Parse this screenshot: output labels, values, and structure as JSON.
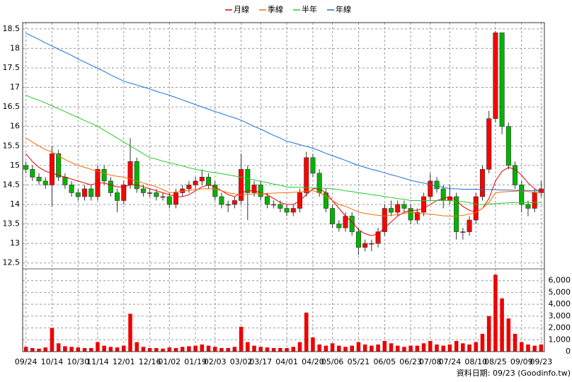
{
  "chart_data": {
    "type": "candlestick",
    "legend": "top",
    "grid": true,
    "categories": [
      "09/24",
      null,
      null,
      null,
      "10/14",
      null,
      null,
      null,
      "10/30",
      null,
      null,
      "11/14",
      null,
      null,
      null,
      "12/01",
      null,
      null,
      null,
      "12/16",
      null,
      null,
      "01/02",
      null,
      null,
      null,
      "01/19",
      null,
      null,
      "02/03",
      null,
      null,
      null,
      "03/02",
      null,
      null,
      "03/17",
      null,
      null,
      null,
      "04/01",
      null,
      null,
      null,
      "04/20",
      null,
      null,
      "05/06",
      null,
      null,
      null,
      "05/21",
      null,
      null,
      null,
      "06/05",
      null,
      null,
      null,
      "06/23",
      null,
      null,
      "07/08",
      null,
      null,
      "07/24",
      null,
      null,
      null,
      "08/10",
      null,
      null,
      "08/25",
      null,
      null,
      null,
      "09/09",
      null,
      null,
      "09/23"
    ],
    "open": [
      15.0,
      14.9,
      14.7,
      14.6,
      14.5,
      15.3,
      14.7,
      14.5,
      14.3,
      14.2,
      14.4,
      14.2,
      14.9,
      14.6,
      14.3,
      14.1,
      14.5,
      15.1,
      14.4,
      14.3,
      14.3,
      14.2,
      14.2,
      14.0,
      14.3,
      14.4,
      14.5,
      14.6,
      14.7,
      14.5,
      14.2,
      14.0,
      14.0,
      14.1,
      14.9,
      14.3,
      14.5,
      14.2,
      14.0,
      14.0,
      13.9,
      13.8,
      13.9,
      14.3,
      15.2,
      14.8,
      14.3,
      13.9,
      13.5,
      13.4,
      13.7,
      13.3,
      12.9,
      13.0,
      13.0,
      13.3,
      13.9,
      13.8,
      14.0,
      13.9,
      13.6,
      13.8,
      14.2,
      14.6,
      14.4,
      14.1,
      14.2,
      13.3,
      13.3,
      13.6,
      14.2,
      14.9,
      16.2,
      18.4,
      16.0,
      15.0,
      14.5,
      14.0,
      13.9,
      14.3
    ],
    "high": [
      15.1,
      15.0,
      14.8,
      14.7,
      15.5,
      15.4,
      14.8,
      14.6,
      14.4,
      14.5,
      14.5,
      15.0,
      15.0,
      14.7,
      14.4,
      14.6,
      15.7,
      15.2,
      14.5,
      14.4,
      14.4,
      14.3,
      14.3,
      14.4,
      14.5,
      14.6,
      14.7,
      14.9,
      14.8,
      14.6,
      14.3,
      14.1,
      14.2,
      15.3,
      15.0,
      14.6,
      14.6,
      14.3,
      14.1,
      14.1,
      14.0,
      14.0,
      14.4,
      15.35,
      15.3,
      14.9,
      14.4,
      14.0,
      13.6,
      13.8,
      13.8,
      13.4,
      13.1,
      13.1,
      13.4,
      14.0,
      14.1,
      14.1,
      14.1,
      14.0,
      13.9,
      14.3,
      14.8,
      14.7,
      14.5,
      14.5,
      14.3,
      13.4,
      13.7,
      14.3,
      15.0,
      16.4,
      18.45,
      18.4,
      16.1,
      15.1,
      14.6,
      14.1,
      14.4,
      14.6
    ],
    "low": [
      14.8,
      14.6,
      14.5,
      14.4,
      13.95,
      14.6,
      14.4,
      14.2,
      14.1,
      14.1,
      14.1,
      14.1,
      14.5,
      14.2,
      13.8,
      14.0,
      14.4,
      14.3,
      14.2,
      14.2,
      14.1,
      14.1,
      13.9,
      13.9,
      14.2,
      14.3,
      14.4,
      14.5,
      14.4,
      14.1,
      13.9,
      13.8,
      13.9,
      14.0,
      13.6,
      14.2,
      14.1,
      13.9,
      13.9,
      13.8,
      13.7,
      13.7,
      13.8,
      14.2,
      14.7,
      14.2,
      13.8,
      13.4,
      13.3,
      13.3,
      13.2,
      12.7,
      12.8,
      12.8,
      12.9,
      13.2,
      13.7,
      13.7,
      13.8,
      13.5,
      13.5,
      13.7,
      14.1,
      14.3,
      13.9,
      14.0,
      13.1,
      13.1,
      13.2,
      13.5,
      14.1,
      14.8,
      16.1,
      15.8,
      14.9,
      14.4,
      13.8,
      13.7,
      13.8,
      14.2
    ],
    "close": [
      14.9,
      14.7,
      14.6,
      14.5,
      15.3,
      14.7,
      14.5,
      14.3,
      14.2,
      14.4,
      14.2,
      14.9,
      14.6,
      14.3,
      14.1,
      14.5,
      15.1,
      14.4,
      14.3,
      14.3,
      14.2,
      14.2,
      14.0,
      14.3,
      14.4,
      14.5,
      14.6,
      14.7,
      14.5,
      14.2,
      14.0,
      14.0,
      14.1,
      14.9,
      14.3,
      14.5,
      14.2,
      14.0,
      14.0,
      13.9,
      13.8,
      13.9,
      14.3,
      15.2,
      14.8,
      14.3,
      13.9,
      13.5,
      13.4,
      13.7,
      13.3,
      12.9,
      13.0,
      13.0,
      13.3,
      13.9,
      13.8,
      14.0,
      13.9,
      13.6,
      13.8,
      14.2,
      14.6,
      14.4,
      14.1,
      14.2,
      13.3,
      13.3,
      13.6,
      14.2,
      14.9,
      16.2,
      18.4,
      16.0,
      15.0,
      14.5,
      14.0,
      13.9,
      14.3,
      14.4
    ],
    "up_color": "#ff0000",
    "down_color": "#00b400",
    "ylim": [
      12.35,
      18.66
    ],
    "yticks": [
      12.5,
      13,
      13.5,
      14,
      14.5,
      15,
      15.5,
      16,
      16.5,
      17,
      17.5,
      18,
      18.5
    ],
    "series": [
      {
        "name": "月線",
        "color": "#e00000",
        "values": [
          15.3,
          15.1,
          14.95,
          14.85,
          14.8,
          14.75,
          14.7,
          14.65,
          14.6,
          14.55,
          14.5,
          14.55,
          14.55,
          14.5,
          14.45,
          14.45,
          14.5,
          14.5,
          14.45,
          14.4,
          14.35,
          14.3,
          14.25,
          14.2,
          14.2,
          14.25,
          14.35,
          14.45,
          14.5,
          14.45,
          14.35,
          14.25,
          14.2,
          14.3,
          14.35,
          14.35,
          14.3,
          14.25,
          14.15,
          14.05,
          14.0,
          14.0,
          14.1,
          14.25,
          14.4,
          14.4,
          14.3,
          14.1,
          13.9,
          13.7,
          13.55,
          13.35,
          13.25,
          13.2,
          13.25,
          13.4,
          13.55,
          13.7,
          13.8,
          13.85,
          13.85,
          13.9,
          14.0,
          14.1,
          14.15,
          14.2,
          14.1,
          13.95,
          13.85,
          13.8,
          13.9,
          14.15,
          14.6,
          14.85,
          14.95,
          14.9,
          14.75,
          14.55,
          14.4,
          14.3
        ]
      },
      {
        "name": "季線",
        "color": "#ff6a00",
        "values": [
          15.7,
          15.6,
          15.5,
          15.4,
          15.35,
          15.25,
          15.15,
          15.07,
          15.0,
          14.95,
          14.9,
          14.85,
          14.8,
          14.75,
          14.72,
          14.7,
          14.65,
          14.6,
          14.55,
          14.5,
          14.45,
          14.38,
          14.3,
          14.32,
          14.34,
          14.36,
          14.38,
          14.4,
          14.4,
          14.4,
          14.35,
          14.3,
          14.27,
          14.25,
          14.26,
          14.27,
          14.28,
          14.28,
          14.29,
          14.3,
          14.3,
          14.31,
          14.32,
          14.34,
          14.35,
          14.3,
          14.2,
          14.1,
          14.0,
          13.95,
          13.88,
          13.8,
          13.77,
          13.74,
          13.72,
          13.7,
          13.72,
          13.74,
          13.77,
          13.8,
          13.78,
          13.76,
          13.75,
          13.73,
          13.71,
          13.7,
          13.7,
          13.72,
          13.75,
          13.8,
          13.9,
          14.05,
          14.3,
          14.32,
          14.33,
          14.34,
          14.35,
          14.33,
          14.31,
          14.3
        ]
      },
      {
        "name": "半年",
        "color": "#22cc22",
        "values": [
          16.8,
          16.73,
          16.67,
          16.6,
          16.53,
          16.45,
          16.38,
          16.3,
          16.23,
          16.15,
          16.08,
          16.0,
          15.9,
          15.8,
          15.7,
          15.6,
          15.5,
          15.4,
          15.3,
          15.2,
          15.16,
          15.11,
          15.07,
          15.03,
          14.99,
          14.94,
          14.9,
          14.87,
          14.84,
          14.81,
          14.79,
          14.76,
          14.73,
          14.7,
          14.66,
          14.63,
          14.59,
          14.56,
          14.52,
          14.49,
          14.45,
          14.44,
          14.44,
          14.43,
          14.42,
          14.42,
          14.41,
          14.4,
          14.38,
          14.35,
          14.33,
          14.3,
          14.28,
          14.25,
          14.23,
          14.2,
          14.18,
          14.15,
          14.13,
          14.1,
          14.1,
          14.1,
          14.1,
          14.1,
          14.1,
          14.1,
          14.08,
          14.07,
          14.05,
          14.0,
          14.0,
          14.01,
          14.02,
          14.03,
          14.04,
          14.05,
          14.05,
          14.05,
          14.05,
          14.05
        ]
      },
      {
        "name": "年線",
        "color": "#1e6ed2",
        "values": [
          18.39,
          18.31,
          18.23,
          18.14,
          18.06,
          17.98,
          17.9,
          17.82,
          17.73,
          17.65,
          17.57,
          17.49,
          17.41,
          17.32,
          17.24,
          17.16,
          17.11,
          17.06,
          17.01,
          16.96,
          16.9,
          16.85,
          16.8,
          16.74,
          16.68,
          16.62,
          16.56,
          16.5,
          16.44,
          16.38,
          16.33,
          16.27,
          16.22,
          16.16,
          16.08,
          16.0,
          15.93,
          15.85,
          15.77,
          15.7,
          15.62,
          15.58,
          15.53,
          15.49,
          15.44,
          15.38,
          15.31,
          15.25,
          15.19,
          15.13,
          15.06,
          15.0,
          14.95,
          14.9,
          14.86,
          14.81,
          14.76,
          14.72,
          14.67,
          14.62,
          14.58,
          14.55,
          14.51,
          14.47,
          14.44,
          14.4,
          14.4,
          14.39,
          14.39,
          14.39,
          14.38,
          14.38,
          14.38,
          14.37,
          14.37,
          14.36,
          14.36,
          14.36,
          14.35,
          14.35
        ]
      }
    ],
    "volume": {
      "color": "#ee0000",
      "ylim": [
        0,
        7000
      ],
      "yticks": [
        0,
        {
          "value": 1000,
          "label": "1,000"
        },
        {
          "value": 2000,
          "label": "2,000"
        },
        {
          "value": 3000,
          "label": "3,000"
        },
        {
          "value": 4000,
          "label": "4,000"
        },
        {
          "value": 5000,
          "label": "5,000"
        },
        {
          "value": 6000,
          "label": "6,000"
        }
      ],
      "values": [
        400,
        300,
        250,
        350,
        2000,
        700,
        450,
        400,
        350,
        300,
        300,
        800,
        500,
        400,
        350,
        500,
        3200,
        800,
        400,
        300,
        300,
        250,
        350,
        300,
        400,
        450,
        500,
        600,
        500,
        400,
        300,
        300,
        400,
        2100,
        800,
        500,
        400,
        350,
        300,
        300,
        300,
        400,
        800,
        3300,
        1200,
        600,
        500,
        700,
        500,
        400,
        500,
        800,
        600,
        500,
        600,
        900,
        700,
        500,
        400,
        500,
        500,
        700,
        900,
        600,
        500,
        600,
        900,
        700,
        600,
        800,
        1500,
        3000,
        6500,
        4500,
        2800,
        1500,
        800,
        600,
        500,
        600
      ]
    },
    "source": "資料日期: 09/23 (Goodinfo.tw)"
  }
}
